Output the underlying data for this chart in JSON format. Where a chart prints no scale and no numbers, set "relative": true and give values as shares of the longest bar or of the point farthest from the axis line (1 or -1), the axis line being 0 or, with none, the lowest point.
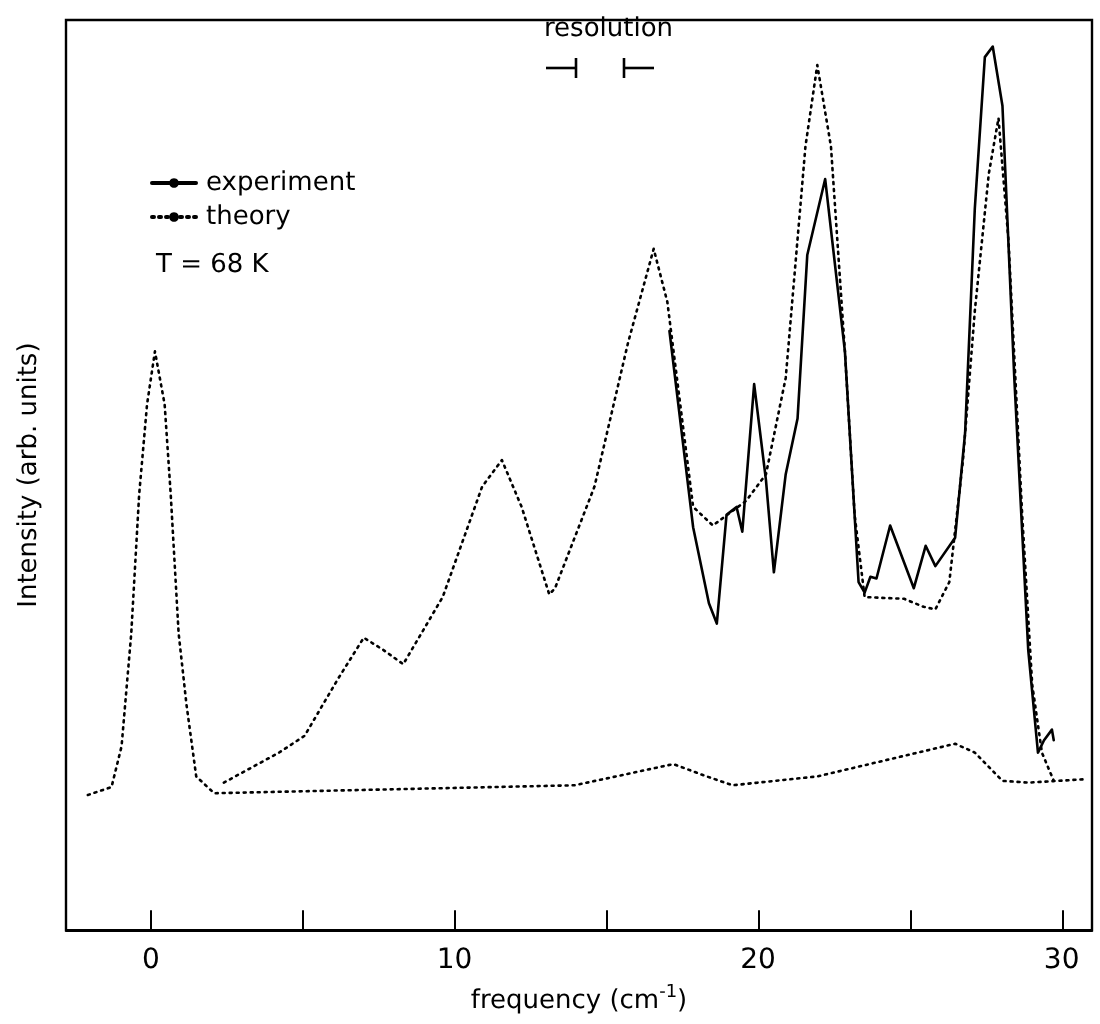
{
  "chart_data": {
    "type": "line",
    "relative": true,
    "xlabel": "frequency (cm$^{-1}$)",
    "ylabel": "Intensity (arb. units)",
    "annotations": [
      "resolution",
      "T = 68 K"
    ],
    "xlim": [
      -2.8,
      31
    ],
    "xticks": [
      0,
      {
        "value": 5,
        "label": null
      },
      10,
      {
        "value": 15,
        "label": null
      },
      20,
      {
        "value": 25,
        "label": null
      },
      30
    ],
    "legend": "top left",
    "grid": false,
    "marker": "none",
    "series": [
      {
        "name": "experiment",
        "color": "#000000",
        "line_style": "solid",
        "x": [
          17.08,
          17.86,
          18.38,
          18.64,
          18.96,
          19.29,
          19.48,
          19.87,
          20.26,
          20.52,
          20.91,
          21.3,
          21.62,
          22.21,
          22.86,
          23.31,
          23.51,
          23.7,
          23.9,
          24.35,
          25.13,
          25.52,
          25.84,
          26.49,
          26.82,
          27.14,
          27.47,
          27.73,
          28.05,
          28.44,
          28.9,
          29.22,
          29.42,
          29.68,
          29.74
        ],
        "values": [
          0.678,
          0.456,
          0.37,
          0.347,
          0.47,
          0.479,
          0.451,
          0.618,
          0.509,
          0.405,
          0.516,
          0.579,
          0.764,
          0.85,
          0.655,
          0.394,
          0.382,
          0.4,
          0.398,
          0.458,
          0.387,
          0.435,
          0.412,
          0.444,
          0.563,
          0.817,
          0.988,
          1,
          0.933,
          0.625,
          0.317,
          0.201,
          0.215,
          0.227,
          0.215
        ]
      },
      {
        "name": "theory",
        "color": "#000000",
        "line_style": "dotted",
        "x": [
          2.4,
          4.22,
          5.06,
          6.17,
          7.01,
          7.66,
          8.31,
          9.61,
          10.91,
          11.56,
          12.21,
          13.12,
          13.31,
          14.61,
          15.71,
          16.56,
          17.01,
          17.86,
          18.51,
          19.61,
          20.26,
          20.91,
          21.56,
          21.95,
          22.4,
          22.86,
          23.18,
          23.51,
          24.81,
          25.45,
          25.84,
          26.3,
          26.75,
          27.14,
          27.6,
          27.92,
          28.25,
          28.7,
          29.03,
          29.35,
          29.74
        ],
        "values": [
          0.167,
          0.201,
          0.22,
          0.285,
          0.331,
          0.317,
          0.301,
          0.377,
          0.502,
          0.532,
          0.479,
          0.38,
          0.387,
          0.502,
          0.664,
          0.771,
          0.711,
          0.479,
          0.458,
          0.486,
          0.516,
          0.625,
          0.887,
          0.979,
          0.887,
          0.655,
          0.47,
          0.377,
          0.375,
          0.366,
          0.363,
          0.394,
          0.532,
          0.701,
          0.856,
          0.919,
          0.78,
          0.47,
          0.278,
          0.201,
          0.169
        ]
      },
      {
        "color": "#000000",
        "line_style": "dotted",
        "x": [
          -2.08,
          -1.3,
          -0.97,
          -0.65,
          -0.39,
          -0.13,
          0.13,
          0.45,
          0.65,
          0.91,
          1.17,
          1.49,
          2.08,
          13.96,
          17.21,
          18.31,
          19.16,
          21.95,
          24.16,
          26.49,
          27.14,
          28.05,
          28.9,
          30.84
        ],
        "values": [
          0.153,
          0.162,
          0.208,
          0.336,
          0.493,
          0.595,
          0.655,
          0.595,
          0.493,
          0.336,
          0.255,
          0.174,
          0.155,
          0.164,
          0.188,
          0.174,
          0.164,
          0.174,
          0.192,
          0.211,
          0.201,
          0.169,
          0.167,
          0.171
        ]
      }
    ]
  }
}
